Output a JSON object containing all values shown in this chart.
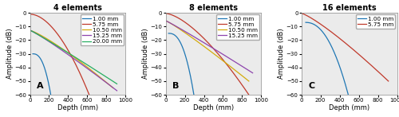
{
  "panels": [
    {
      "title": "4 elements",
      "label": "A",
      "series": [
        {
          "label": "1.00 mm",
          "color": "#1f77b4",
          "x0": 30,
          "x1": 218,
          "y0": -30,
          "y1": -60,
          "curve": 2.5
        },
        {
          "label": "5.75 mm",
          "color": "#c0392b",
          "x0": 8,
          "x1": 620,
          "y0": -1,
          "y1": -60,
          "curve": 1.8
        },
        {
          "label": "10.50 mm",
          "color": "#d4ac0d",
          "x0": 8,
          "x1": 870,
          "y0": -13,
          "y1": -55,
          "curve": 1.2
        },
        {
          "label": "15.25 mm",
          "color": "#8e44ad",
          "x0": 8,
          "x1": 910,
          "y0": -13,
          "y1": -57,
          "curve": 1.1
        },
        {
          "label": "20.00 mm",
          "color": "#27ae60",
          "x0": 8,
          "x1": 910,
          "y0": -13,
          "y1": -52,
          "curve": 1.05
        }
      ]
    },
    {
      "title": "8 elements",
      "label": "B",
      "series": [
        {
          "label": "1.00 mm",
          "color": "#1f77b4",
          "x0": 30,
          "x1": 295,
          "y0": -15,
          "y1": -60,
          "curve": 2.5
        },
        {
          "label": "5.75 mm",
          "color": "#c0392b",
          "x0": 8,
          "x1": 870,
          "y0": -0.5,
          "y1": -60,
          "curve": 1.5
        },
        {
          "label": "10.50 mm",
          "color": "#d4ac0d",
          "x0": 8,
          "x1": 870,
          "y0": -6,
          "y1": -50,
          "curve": 1.1
        },
        {
          "label": "15.25 mm",
          "color": "#8e44ad",
          "x0": 8,
          "x1": 910,
          "y0": -6,
          "y1": -44,
          "curve": 1.05
        }
      ]
    },
    {
      "title": "16 elements",
      "label": "C",
      "series": [
        {
          "label": "1.00 mm",
          "color": "#1f77b4",
          "x0": 45,
          "x1": 490,
          "y0": -7,
          "y1": -60,
          "curve": 2.2
        },
        {
          "label": "5.75 mm",
          "color": "#c0392b",
          "x0": 8,
          "x1": 910,
          "y0": -0.5,
          "y1": -50,
          "curve": 1.2
        }
      ]
    }
  ],
  "xlim": [
    0,
    1000
  ],
  "ylim": [
    -60,
    0
  ],
  "xticks": [
    0,
    200,
    400,
    600,
    800,
    1000
  ],
  "yticks": [
    -60,
    -50,
    -40,
    -30,
    -20,
    -10,
    0
  ],
  "xlabel": "Depth (mm)",
  "ylabel": "Amplitude (dB)",
  "background_color": "#ebebeb",
  "legend_fontsize": 5.2,
  "tick_fontsize": 5.0,
  "label_fontsize": 6.0,
  "title_fontsize": 7.0
}
